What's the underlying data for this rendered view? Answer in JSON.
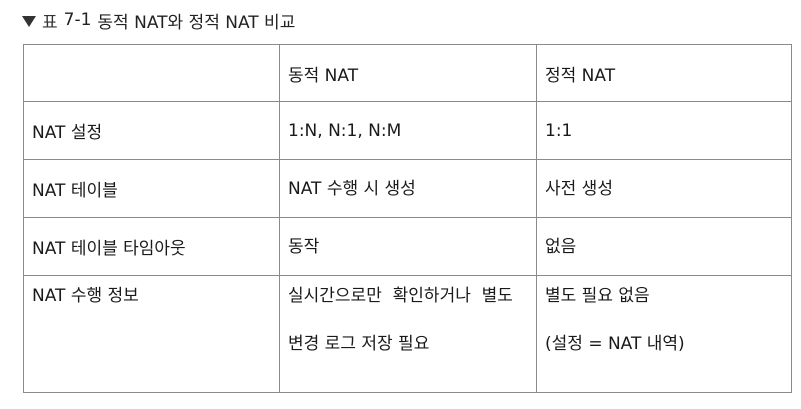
{
  "caption": {
    "prefix": "표",
    "number": "7-1",
    "title": "동적 NAT와 정적 NAT 비교"
  },
  "table": {
    "headers": [
      "",
      "동적 NAT",
      "정적 NAT"
    ],
    "rows": [
      {
        "label": "NAT 설정",
        "dynamic": [
          "1:N, N:1, N:M"
        ],
        "static": [
          "1:1"
        ]
      },
      {
        "label": "NAT 테이블",
        "dynamic": [
          "NAT 수행 시 생성"
        ],
        "static": [
          "사전 생성"
        ]
      },
      {
        "label": "NAT 테이블 타임아웃",
        "dynamic": [
          "동작"
        ],
        "static": [
          "없음"
        ]
      },
      {
        "label": "NAT 수행 정보",
        "dynamic": [
          "실시간으로만  확인하거나  별도",
          "변경 로그 저장 필요"
        ],
        "static": [
          "별도 필요 없음",
          "(설정 = NAT 내역)"
        ]
      }
    ]
  }
}
